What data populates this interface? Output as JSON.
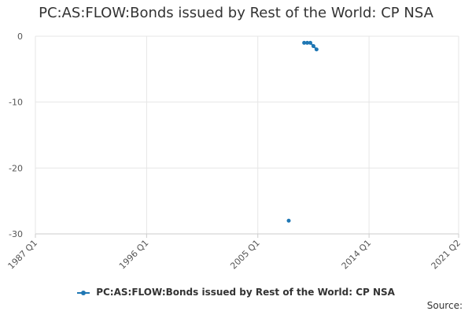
{
  "chart_data": {
    "type": "line",
    "title": "PC:AS:FLOW:Bonds issued by Rest of the World: CP NSA",
    "x_tick_labels": [
      "1987 Q1",
      "1996 Q1",
      "2005 Q1",
      "2014 Q1",
      "2021 Q2"
    ],
    "x_tick_values": [
      1987.0,
      1996.0,
      2005.0,
      2014.0,
      2021.25
    ],
    "xlim": [
      1987.0,
      2021.25
    ],
    "y_tick_labels": [
      "0",
      "-10",
      "-20",
      "-30"
    ],
    "y_tick_values": [
      0,
      -10,
      -20,
      -30
    ],
    "ylim": [
      -30,
      0
    ],
    "grid": true,
    "legend_position": "bottom",
    "series": [
      {
        "name": "PC:AS:FLOW:Bonds issued by Rest of the World: CP NSA",
        "color": "#1f77b4",
        "points": [
          {
            "x": 2007.5,
            "y": -28
          },
          {
            "x": 2008.75,
            "y": -1
          },
          {
            "x": 2009.0,
            "y": -1
          },
          {
            "x": 2009.25,
            "y": -1
          },
          {
            "x": 2009.5,
            "y": -1.5
          },
          {
            "x": 2009.75,
            "y": -2
          }
        ]
      }
    ]
  },
  "source_label": "Source:"
}
